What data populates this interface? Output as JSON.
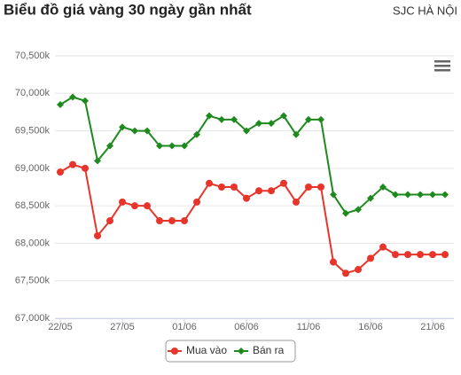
{
  "chart_data": {
    "type": "line",
    "title": "Biểu đồ giá vàng 30 ngày gần nhất",
    "subtitle": "SJC HÀ NỘI",
    "categories": [
      "22/05",
      null,
      null,
      null,
      null,
      "27/05",
      null,
      null,
      null,
      null,
      "01/06",
      null,
      null,
      null,
      null,
      "06/06",
      null,
      null,
      null,
      null,
      "11/06",
      null,
      null,
      null,
      null,
      "16/06",
      null,
      null,
      null,
      null,
      "21/06",
      null
    ],
    "series": [
      {
        "name": "Mua vào",
        "color": "#e8352b",
        "marker": "circle",
        "values": [
          68950,
          69050,
          69000,
          68100,
          68300,
          68550,
          68500,
          68500,
          68300,
          68300,
          68300,
          68550,
          68800,
          68750,
          68750,
          68600,
          68700,
          68700,
          68800,
          68550,
          68750,
          68750,
          67750,
          67600,
          67650,
          67800,
          67950,
          67850,
          67850,
          67850,
          67850,
          67850
        ]
      },
      {
        "name": "Bán ra",
        "color": "#1e8a1e",
        "marker": "diamond",
        "values": [
          69850,
          69950,
          69900,
          69100,
          69300,
          69550,
          69500,
          69500,
          69300,
          69300,
          69300,
          69450,
          69700,
          69650,
          69650,
          69500,
          69600,
          69600,
          69700,
          69450,
          69650,
          69650,
          68650,
          68400,
          68450,
          68600,
          68750,
          68650,
          68650,
          68650,
          68650,
          68650
        ]
      }
    ],
    "ylim": [
      67000,
      70500
    ],
    "yticks": [
      {
        "value": 67000,
        "label": "67,000k"
      },
      {
        "value": 67500,
        "label": "67,500k"
      },
      {
        "value": 68000,
        "label": "68,000k"
      },
      {
        "value": 68500,
        "label": "68,500k"
      },
      {
        "value": 69000,
        "label": "69,000k"
      },
      {
        "value": 69500,
        "label": "69,500k"
      },
      {
        "value": 70000,
        "label": "70,000k"
      },
      {
        "value": 70500,
        "label": "70,500k"
      }
    ],
    "grid": true,
    "legend": "bottom"
  }
}
